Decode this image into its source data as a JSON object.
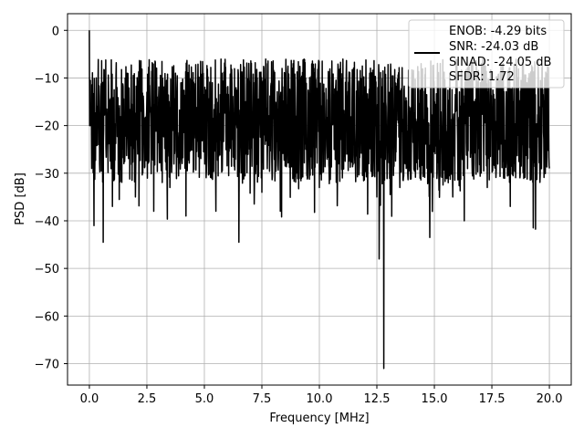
{
  "chart_data": {
    "type": "line",
    "title": "",
    "xlabel": "Frequency [MHz]",
    "ylabel": "PSD [dB]",
    "xlim": [
      -0.95,
      20.95
    ],
    "ylim": [
      -74.5,
      3.5
    ],
    "xticks": [
      0.0,
      2.5,
      5.0,
      7.5,
      10.0,
      12.5,
      15.0,
      17.5,
      20.0
    ],
    "xtick_labels": [
      "0.0",
      "2.5",
      "5.0",
      "7.5",
      "10.0",
      "12.5",
      "15.0",
      "17.5",
      "20.0"
    ],
    "yticks": [
      0,
      -10,
      -20,
      -30,
      -40,
      -50,
      -60,
      -70
    ],
    "ytick_labels": [
      "0",
      "−10",
      "−20",
      "−30",
      "−40",
      "−50",
      "−60",
      "−70"
    ],
    "grid": true,
    "legend_position": "top-right",
    "legend_lines": [
      "ENOB: -4.29 bits",
      "SNR: -24.03 dB",
      "SINAD: -24.05 dB",
      "SFDR: 1.72"
    ],
    "series": [
      {
        "color": "#000000",
        "approximate": true,
        "x": [
          0.0,
          0.05,
          0.1,
          0.2,
          0.3,
          0.4,
          0.5,
          0.6,
          0.7,
          0.8,
          1.0,
          1.2,
          1.5,
          1.8,
          2.0,
          2.2,
          2.5,
          2.8,
          3.0,
          3.3,
          3.5,
          3.8,
          4.0,
          4.2,
          4.5,
          4.8,
          5.0,
          5.3,
          5.5,
          5.8,
          6.0,
          6.3,
          6.5,
          6.8,
          7.0,
          7.3,
          7.5,
          7.8,
          8.0,
          8.3,
          8.5,
          8.8,
          9.0,
          9.3,
          9.5,
          9.8,
          10.0,
          10.3,
          10.5,
          10.8,
          11.0,
          11.3,
          11.5,
          11.8,
          12.0,
          12.3,
          12.5,
          12.6,
          12.7,
          12.8,
          12.9,
          13.0,
          13.3,
          13.5,
          13.8,
          14.0,
          14.3,
          14.5,
          14.8,
          15.0,
          15.3,
          15.5,
          15.8,
          16.0,
          16.3,
          16.5,
          16.8,
          17.0,
          17.3,
          17.5,
          17.8,
          18.0,
          18.3,
          18.5,
          18.8,
          19.0,
          19.3,
          19.5,
          19.8,
          20.0
        ],
        "y": [
          0,
          -18,
          -29,
          -41,
          -10,
          -24,
          -14,
          -44.5,
          -16,
          -22,
          -37,
          -12,
          -28,
          -18,
          -35,
          -24,
          -13,
          -38,
          -20,
          -15,
          -33,
          -22,
          -11,
          -39,
          -19,
          -25,
          -14,
          -31,
          -38,
          -20,
          -12,
          -27,
          -44.5,
          -15,
          -23,
          -10,
          -34,
          -18,
          -12,
          -38,
          -21,
          -9,
          -30,
          -14,
          -25,
          -8,
          -33,
          -16,
          -22,
          -11,
          -31,
          -14,
          -24,
          -13,
          -29,
          -12,
          -35,
          -48,
          -20,
          -71,
          -16,
          -25,
          -11,
          -33,
          -18,
          -24,
          -10,
          -30,
          -43.5,
          -16,
          -22,
          -12,
          -35,
          -19,
          -40,
          -14,
          -28,
          -11,
          -33,
          -19,
          -25,
          -12,
          -37,
          -20,
          -24,
          -14,
          -41.5,
          -18,
          -10,
          -29
        ]
      }
    ]
  }
}
